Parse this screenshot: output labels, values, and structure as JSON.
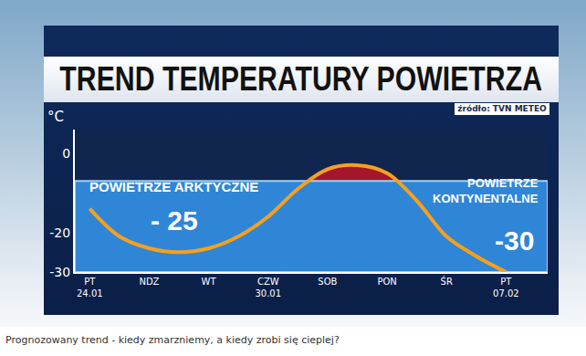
{
  "chart_data": {
    "type": "line",
    "title": "TREND TEMPERATURY POWIETRZA",
    "source": "źródło: TVN METEO",
    "caption": "Prognozowany trend - kiedy zmarzniemy, a kiedy zrobi się cieplej?",
    "y_label": "°C",
    "categories": [
      "PT 24.01",
      null,
      "NDZ",
      null,
      "WT",
      null,
      "CZW 30.01",
      null,
      "SOB",
      null,
      "PON",
      null,
      "ŚR",
      null,
      "PT 07.02"
    ],
    "values": [
      -14,
      -21,
      -24,
      -25,
      -24,
      -21,
      -16,
      -9,
      -4,
      -3,
      -5,
      -12,
      -21,
      -26,
      -30
    ],
    "threshold": -7,
    "ylim": [
      -30,
      6
    ],
    "yticks": [
      0,
      -20,
      -30
    ],
    "color": "#f5a01e",
    "grid": false,
    "annotations": [
      {
        "text": "POWIETRZE ARKTYCZNE"
      },
      {
        "text": "- 25"
      },
      {
        "text": "POWIETRZE KONTYNENTALNE"
      },
      {
        "text": "-30"
      }
    ]
  }
}
